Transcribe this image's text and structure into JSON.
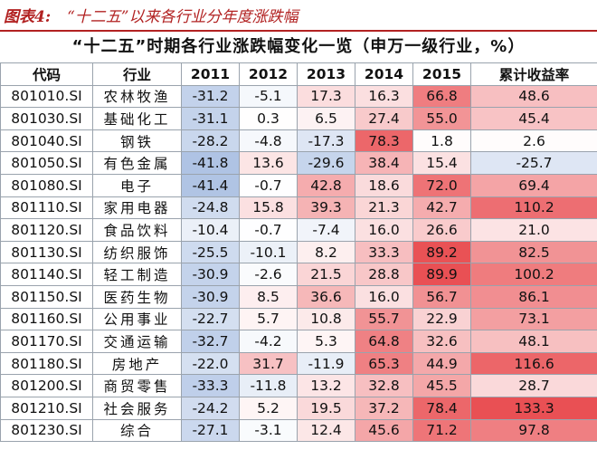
{
  "caption": {
    "label": "图表4:",
    "text": "“十二五”以来各行业分年度涨跌幅"
  },
  "table_title": "“十二五”时期各行业涨跌幅变化一览（申万一级行业，%）",
  "colors": {
    "positive": "#e8474b",
    "negative": "#4a78c2",
    "accent": "#b22222"
  },
  "headers": [
    "代码",
    "行业",
    "2011",
    "2012",
    "2013",
    "2014",
    "2015",
    "累计收益率"
  ],
  "rows": [
    {
      "code": "801010.SI",
      "industry": "农林牧渔",
      "values": [
        "-31.2",
        "-5.1",
        "17.3",
        "16.3",
        "66.8",
        "48.6"
      ]
    },
    {
      "code": "801030.SI",
      "industry": "基础化工",
      "values": [
        "-31.1",
        "0.3",
        "6.5",
        "27.4",
        "55.0",
        "45.4"
      ]
    },
    {
      "code": "801040.SI",
      "industry": "钢铁",
      "values": [
        "-28.2",
        "-4.8",
        "-17.3",
        "78.3",
        "1.8",
        "2.6"
      ]
    },
    {
      "code": "801050.SI",
      "industry": "有色金属",
      "values": [
        "-41.8",
        "13.6",
        "-29.6",
        "38.4",
        "15.4",
        "-25.7"
      ]
    },
    {
      "code": "801080.SI",
      "industry": "电子",
      "values": [
        "-41.4",
        "-0.7",
        "42.8",
        "18.6",
        "72.0",
        "69.4"
      ]
    },
    {
      "code": "801110.SI",
      "industry": "家用电器",
      "values": [
        "-24.8",
        "15.8",
        "39.3",
        "21.3",
        "42.7",
        "110.2"
      ]
    },
    {
      "code": "801120.SI",
      "industry": "食品饮料",
      "values": [
        "-10.4",
        "-0.7",
        "-7.4",
        "16.0",
        "26.6",
        "21.0"
      ]
    },
    {
      "code": "801130.SI",
      "industry": "纺织服饰",
      "values": [
        "-25.5",
        "-10.1",
        "8.2",
        "33.3",
        "89.2",
        "82.5"
      ]
    },
    {
      "code": "801140.SI",
      "industry": "轻工制造",
      "values": [
        "-30.9",
        "-2.6",
        "21.5",
        "28.8",
        "89.9",
        "100.2"
      ]
    },
    {
      "code": "801150.SI",
      "industry": "医药生物",
      "values": [
        "-30.9",
        "8.5",
        "36.6",
        "16.0",
        "56.7",
        "86.1"
      ]
    },
    {
      "code": "801160.SI",
      "industry": "公用事业",
      "values": [
        "-22.7",
        "5.7",
        "10.8",
        "55.7",
        "22.9",
        "73.1"
      ]
    },
    {
      "code": "801170.SI",
      "industry": "交通运输",
      "values": [
        "-32.7",
        "-4.2",
        "5.3",
        "64.8",
        "32.6",
        "48.1"
      ]
    },
    {
      "code": "801180.SI",
      "industry": "房地产",
      "values": [
        "-22.0",
        "31.7",
        "-11.9",
        "65.3",
        "44.9",
        "116.6"
      ]
    },
    {
      "code": "801200.SI",
      "industry": "商贸零售",
      "values": [
        "-33.3",
        "-11.8",
        "13.2",
        "32.8",
        "45.5",
        "28.7"
      ]
    },
    {
      "code": "801210.SI",
      "industry": "社会服务",
      "values": [
        "-24.2",
        "5.2",
        "19.5",
        "37.2",
        "78.4",
        "133.3"
      ]
    },
    {
      "code": "801230.SI",
      "industry": "综合",
      "values": [
        "-27.1",
        "-3.1",
        "12.4",
        "45.6",
        "71.2",
        "97.8"
      ]
    }
  ]
}
